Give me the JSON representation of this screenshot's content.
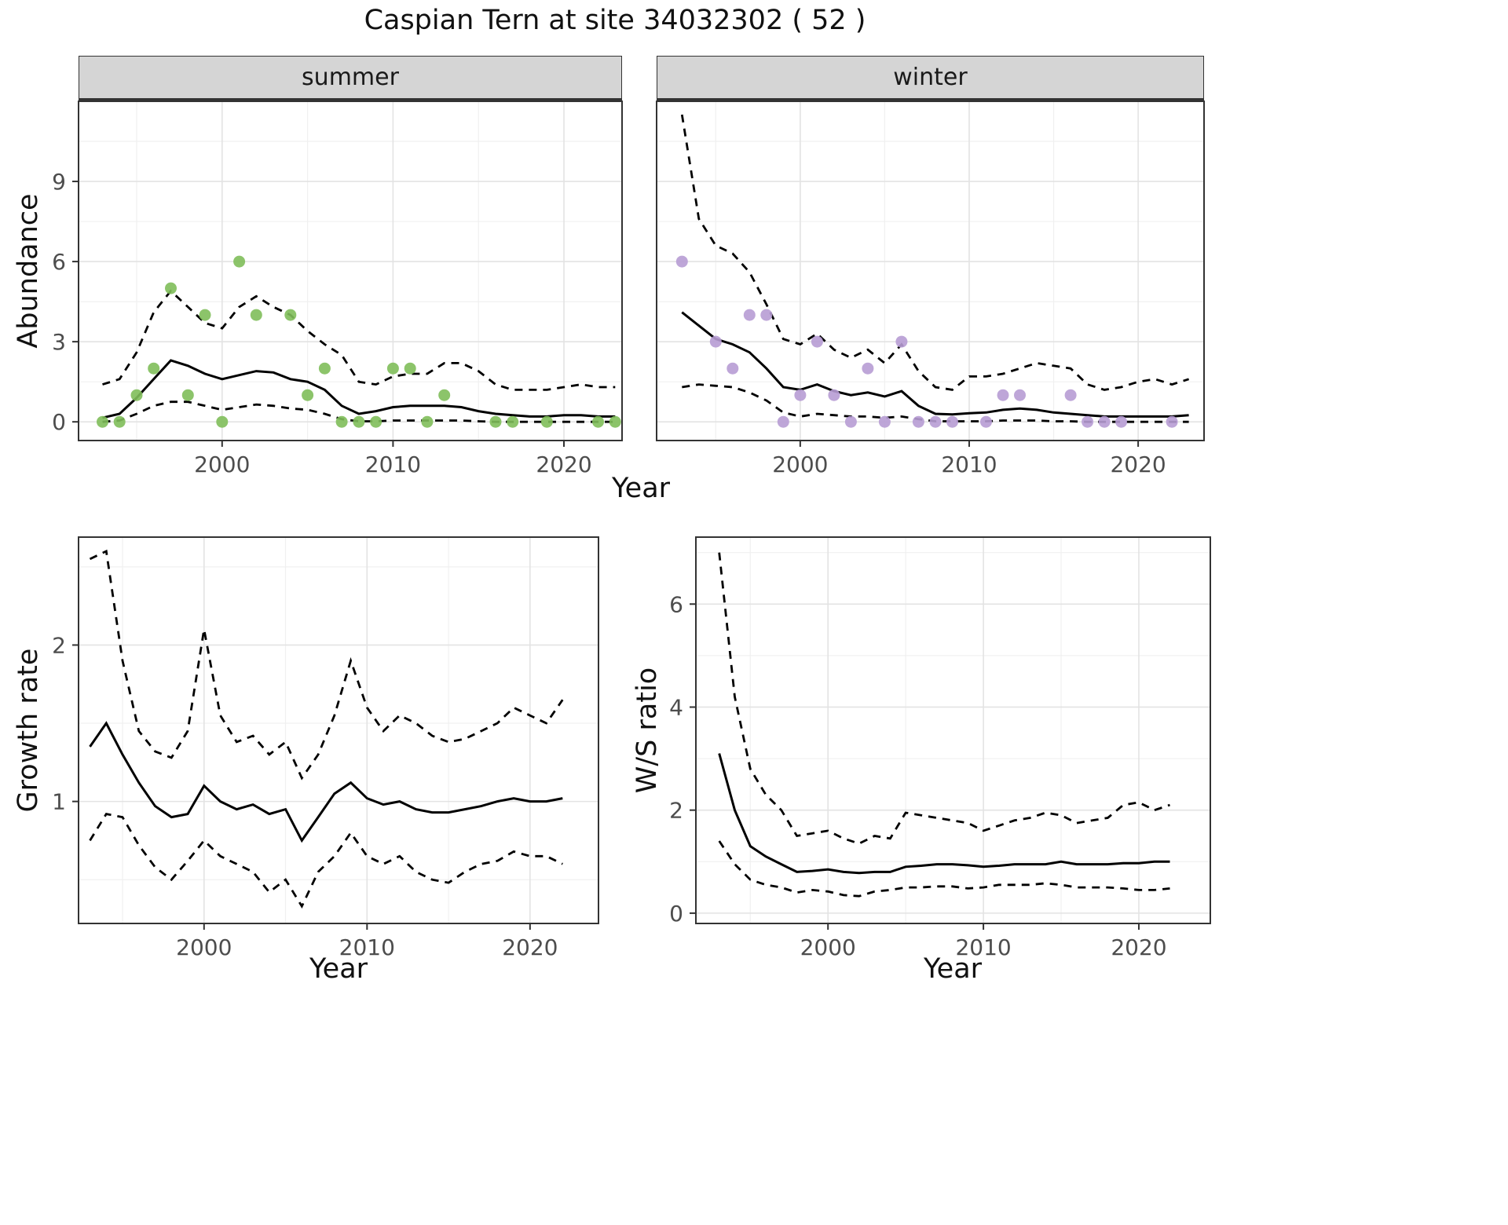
{
  "title": "Caspian Tern at site 34032302 ( 52 )",
  "facets": {
    "summer": "summer",
    "winter": "winter"
  },
  "axis_titles": {
    "abundance": "Abundance",
    "year": "Year",
    "growth": "Growth rate",
    "ws": "W/S ratio"
  },
  "colors": {
    "summer_points": "#7FBE5A",
    "winter_points": "#B79CD4",
    "line": "#000000",
    "strip_bg": "#D5D5D5",
    "grid_major": "#E3E3E3",
    "grid_minor": "#F0F0F0",
    "axis_text": "#4D4D4D",
    "panel_border": "#333333"
  },
  "chart_data": [
    {
      "id": "summer",
      "type": "scatter",
      "title": "summer",
      "xlabel": "Year",
      "ylabel": "Abundance",
      "xlim": [
        1991.6,
        2023.4
      ],
      "ylim": [
        -0.7,
        12.0
      ],
      "xticks": [
        2000,
        2010,
        2020
      ],
      "yticks": [
        0,
        3,
        6,
        9
      ],
      "xminor": [
        1995,
        2005,
        2015
      ],
      "yminor": [
        1.5,
        4.5,
        7.5,
        10.5
      ],
      "point_color": "#7FBE5A",
      "points": {
        "x": [
          1993,
          1994,
          1995,
          1996,
          1997,
          1998,
          1999,
          2000,
          2001,
          2002,
          2004,
          2005,
          2006,
          2007,
          2008,
          2009,
          2010,
          2011,
          2012,
          2013,
          2016,
          2017,
          2019,
          2022,
          2023
        ],
        "y": [
          0,
          0,
          1,
          2,
          5,
          1,
          4,
          0,
          6,
          4,
          4,
          1,
          2,
          0,
          0,
          0,
          2,
          2,
          0,
          1,
          0,
          0,
          0,
          0,
          0
        ]
      },
      "series": [
        {
          "name": "fit",
          "style": "solid",
          "x": [
            1993,
            1994,
            1995,
            1996,
            1997,
            1998,
            1999,
            2000,
            2001,
            2002,
            2003,
            2004,
            2005,
            2006,
            2007,
            2008,
            2009,
            2010,
            2011,
            2012,
            2013,
            2014,
            2015,
            2016,
            2017,
            2018,
            2019,
            2020,
            2021,
            2022,
            2023
          ],
          "y": [
            0.15,
            0.3,
            0.9,
            1.6,
            2.3,
            2.1,
            1.8,
            1.6,
            1.75,
            1.9,
            1.85,
            1.6,
            1.5,
            1.2,
            0.6,
            0.3,
            0.4,
            0.55,
            0.6,
            0.6,
            0.6,
            0.55,
            0.4,
            0.3,
            0.25,
            0.2,
            0.2,
            0.25,
            0.25,
            0.2,
            0.2
          ]
        },
        {
          "name": "upper_ci",
          "style": "dashed",
          "x": [
            1993,
            1994,
            1995,
            1996,
            1997,
            1998,
            1999,
            2000,
            2001,
            2002,
            2003,
            2004,
            2005,
            2006,
            2007,
            2008,
            2009,
            2010,
            2011,
            2012,
            2013,
            2014,
            2015,
            2016,
            2017,
            2018,
            2019,
            2020,
            2021,
            2022,
            2023
          ],
          "y": [
            1.4,
            1.6,
            2.6,
            4.1,
            4.9,
            4.3,
            3.7,
            3.5,
            4.3,
            4.7,
            4.3,
            4.0,
            3.4,
            2.9,
            2.5,
            1.5,
            1.4,
            1.7,
            1.8,
            1.8,
            2.2,
            2.2,
            1.9,
            1.4,
            1.2,
            1.2,
            1.2,
            1.3,
            1.4,
            1.3,
            1.3
          ]
        },
        {
          "name": "lower_ci",
          "style": "dashed",
          "x": [
            1993,
            1994,
            1995,
            1996,
            1997,
            1998,
            1999,
            2000,
            2001,
            2002,
            2003,
            2004,
            2005,
            2006,
            2007,
            2008,
            2009,
            2010,
            2011,
            2012,
            2013,
            2014,
            2015,
            2016,
            2017,
            2018,
            2019,
            2020,
            2021,
            2022,
            2023
          ],
          "y": [
            0.0,
            0.05,
            0.3,
            0.6,
            0.75,
            0.75,
            0.6,
            0.45,
            0.55,
            0.65,
            0.6,
            0.5,
            0.45,
            0.3,
            0.1,
            0.02,
            0.02,
            0.05,
            0.05,
            0.05,
            0.05,
            0.05,
            0.02,
            0.0,
            0.0,
            0.0,
            0.0,
            0.0,
            0.0,
            0.0,
            0.0
          ]
        }
      ]
    },
    {
      "id": "winter",
      "type": "scatter",
      "title": "winter",
      "xlabel": "Year",
      "ylabel": "Abundance",
      "xlim": [
        1991.5,
        2023.9
      ],
      "ylim": [
        -0.7,
        12.0
      ],
      "xticks": [
        2000,
        2010,
        2020
      ],
      "yticks": [
        0,
        3,
        6,
        9
      ],
      "xminor": [
        1995,
        2005,
        2015
      ],
      "yminor": [
        1.5,
        4.5,
        7.5,
        10.5
      ],
      "point_color": "#B79CD4",
      "points": {
        "x": [
          1993,
          1995,
          1996,
          1997,
          1998,
          1999,
          2000,
          2001,
          2002,
          2003,
          2004,
          2005,
          2006,
          2007,
          2008,
          2009,
          2011,
          2012,
          2013,
          2016,
          2017,
          2018,
          2019,
          2022
        ],
        "y": [
          6,
          3,
          2,
          4,
          4,
          0,
          1,
          3,
          1,
          0,
          2,
          0,
          3,
          0,
          0,
          0,
          0,
          1,
          1,
          1,
          0,
          0,
          0,
          0
        ]
      },
      "series": [
        {
          "name": "fit",
          "style": "solid",
          "x": [
            1993,
            1994,
            1995,
            1996,
            1997,
            1998,
            1999,
            2000,
            2001,
            2002,
            2003,
            2004,
            2005,
            2006,
            2007,
            2008,
            2009,
            2010,
            2011,
            2012,
            2013,
            2014,
            2015,
            2016,
            2017,
            2018,
            2019,
            2020,
            2021,
            2022,
            2023
          ],
          "y": [
            4.1,
            3.6,
            3.1,
            2.9,
            2.6,
            2.0,
            1.3,
            1.2,
            1.4,
            1.15,
            1.0,
            1.1,
            0.95,
            1.15,
            0.6,
            0.3,
            0.28,
            0.32,
            0.35,
            0.45,
            0.5,
            0.45,
            0.35,
            0.3,
            0.25,
            0.2,
            0.2,
            0.2,
            0.2,
            0.2,
            0.25
          ]
        },
        {
          "name": "upper_ci",
          "style": "dashed",
          "x": [
            1993,
            1994,
            1995,
            1996,
            1997,
            1998,
            1999,
            2000,
            2001,
            2002,
            2003,
            2004,
            2005,
            2006,
            2007,
            2008,
            2009,
            2010,
            2011,
            2012,
            2013,
            2014,
            2015,
            2016,
            2017,
            2018,
            2019,
            2020,
            2021,
            2022,
            2023
          ],
          "y": [
            11.5,
            7.6,
            6.6,
            6.3,
            5.6,
            4.4,
            3.1,
            2.9,
            3.3,
            2.7,
            2.4,
            2.7,
            2.2,
            2.9,
            1.9,
            1.3,
            1.2,
            1.7,
            1.7,
            1.8,
            2.0,
            2.2,
            2.1,
            2.0,
            1.4,
            1.2,
            1.3,
            1.5,
            1.6,
            1.4,
            1.6
          ]
        },
        {
          "name": "lower_ci",
          "style": "dashed",
          "x": [
            1993,
            1994,
            1995,
            1996,
            1997,
            1998,
            1999,
            2000,
            2001,
            2002,
            2003,
            2004,
            2005,
            2006,
            2007,
            2008,
            2009,
            2010,
            2011,
            2012,
            2013,
            2014,
            2015,
            2016,
            2017,
            2018,
            2019,
            2020,
            2021,
            2022,
            2023
          ],
          "y": [
            1.3,
            1.4,
            1.35,
            1.3,
            1.1,
            0.8,
            0.35,
            0.2,
            0.3,
            0.25,
            0.2,
            0.2,
            0.15,
            0.2,
            0.1,
            0.02,
            0.02,
            0.02,
            0.02,
            0.05,
            0.05,
            0.05,
            0.02,
            0.02,
            0.0,
            0.0,
            0.0,
            0.0,
            0.0,
            0.0,
            0.0
          ]
        }
      ]
    },
    {
      "id": "growth",
      "type": "line",
      "title": "Growth rate",
      "xlabel": "Year",
      "ylabel": "Growth rate",
      "xlim": [
        1992.3,
        2024.2
      ],
      "ylim": [
        0.22,
        2.69
      ],
      "xticks": [
        2000,
        2010,
        2020
      ],
      "yticks": [
        1,
        2
      ],
      "xminor": [
        1995,
        2005,
        2015
      ],
      "yminor": [
        0.5,
        1.5,
        2.5
      ],
      "series": [
        {
          "name": "fit",
          "style": "solid",
          "x": [
            1993,
            1994,
            1995,
            1996,
            1997,
            1998,
            1999,
            2000,
            2001,
            2002,
            2003,
            2004,
            2005,
            2006,
            2007,
            2008,
            2009,
            2010,
            2011,
            2012,
            2013,
            2014,
            2015,
            2016,
            2017,
            2018,
            2019,
            2020,
            2021,
            2022
          ],
          "y": [
            1.35,
            1.5,
            1.3,
            1.12,
            0.97,
            0.9,
            0.92,
            1.1,
            1.0,
            0.95,
            0.98,
            0.92,
            0.95,
            0.75,
            0.9,
            1.05,
            1.12,
            1.02,
            0.98,
            1.0,
            0.95,
            0.93,
            0.93,
            0.95,
            0.97,
            1.0,
            1.02,
            1.0,
            1.0,
            1.02
          ]
        },
        {
          "name": "upper_ci",
          "style": "dashed",
          "x": [
            1993,
            1994,
            1995,
            1996,
            1997,
            1998,
            1999,
            2000,
            2001,
            2002,
            2003,
            2004,
            2005,
            2006,
            2007,
            2008,
            2009,
            2010,
            2011,
            2012,
            2013,
            2014,
            2015,
            2016,
            2017,
            2018,
            2019,
            2020,
            2021,
            2022
          ],
          "y": [
            2.55,
            2.6,
            1.9,
            1.45,
            1.32,
            1.28,
            1.45,
            2.1,
            1.55,
            1.38,
            1.42,
            1.3,
            1.38,
            1.15,
            1.3,
            1.55,
            1.9,
            1.6,
            1.45,
            1.55,
            1.5,
            1.42,
            1.38,
            1.4,
            1.45,
            1.5,
            1.6,
            1.55,
            1.5,
            1.65
          ]
        },
        {
          "name": "lower_ci",
          "style": "dashed",
          "x": [
            1993,
            1994,
            1995,
            1996,
            1997,
            1998,
            1999,
            2000,
            2001,
            2002,
            2003,
            2004,
            2005,
            2006,
            2007,
            2008,
            2009,
            2010,
            2011,
            2012,
            2013,
            2014,
            2015,
            2016,
            2017,
            2018,
            2019,
            2020,
            2021,
            2022
          ],
          "y": [
            0.75,
            0.92,
            0.9,
            0.72,
            0.58,
            0.5,
            0.62,
            0.75,
            0.65,
            0.6,
            0.55,
            0.42,
            0.5,
            0.33,
            0.55,
            0.65,
            0.8,
            0.65,
            0.6,
            0.65,
            0.55,
            0.5,
            0.48,
            0.55,
            0.6,
            0.62,
            0.68,
            0.65,
            0.65,
            0.6
          ]
        }
      ]
    },
    {
      "id": "ws",
      "type": "line",
      "title": "W/S ratio",
      "xlabel": "Year",
      "ylabel": "W/S ratio",
      "xlim": [
        1991.5,
        2024.6
      ],
      "ylim": [
        -0.2,
        7.3
      ],
      "xticks": [
        2000,
        2010,
        2020
      ],
      "yticks": [
        0,
        2,
        4,
        6
      ],
      "xminor": [
        1995,
        2005,
        2015
      ],
      "yminor": [
        1,
        3,
        5,
        7
      ],
      "series": [
        {
          "name": "fit",
          "style": "solid",
          "x": [
            1993,
            1994,
            1995,
            1996,
            1997,
            1998,
            1999,
            2000,
            2001,
            2002,
            2003,
            2004,
            2005,
            2006,
            2007,
            2008,
            2009,
            2010,
            2011,
            2012,
            2013,
            2014,
            2015,
            2016,
            2017,
            2018,
            2019,
            2020,
            2021,
            2022
          ],
          "y": [
            3.1,
            2.0,
            1.3,
            1.1,
            0.95,
            0.8,
            0.82,
            0.85,
            0.8,
            0.78,
            0.8,
            0.8,
            0.9,
            0.92,
            0.95,
            0.95,
            0.93,
            0.9,
            0.92,
            0.95,
            0.95,
            0.95,
            1.0,
            0.95,
            0.95,
            0.95,
            0.97,
            0.97,
            1.0,
            1.0
          ]
        },
        {
          "name": "upper_ci",
          "style": "dashed",
          "x": [
            1993,
            1994,
            1995,
            1996,
            1997,
            1998,
            1999,
            2000,
            2001,
            2002,
            2003,
            2004,
            2005,
            2006,
            2007,
            2008,
            2009,
            2010,
            2011,
            2012,
            2013,
            2014,
            2015,
            2016,
            2017,
            2018,
            2019,
            2020,
            2021,
            2022
          ],
          "y": [
            7.0,
            4.2,
            2.8,
            2.3,
            2.0,
            1.5,
            1.55,
            1.6,
            1.45,
            1.35,
            1.5,
            1.45,
            1.95,
            1.9,
            1.85,
            1.8,
            1.75,
            1.6,
            1.7,
            1.8,
            1.85,
            1.95,
            1.9,
            1.75,
            1.8,
            1.85,
            2.1,
            2.15,
            2.0,
            2.1
          ]
        },
        {
          "name": "lower_ci",
          "style": "dashed",
          "x": [
            1993,
            1994,
            1995,
            1996,
            1997,
            1998,
            1999,
            2000,
            2001,
            2002,
            2003,
            2004,
            2005,
            2006,
            2007,
            2008,
            2009,
            2010,
            2011,
            2012,
            2013,
            2014,
            2015,
            2016,
            2017,
            2018,
            2019,
            2020,
            2021,
            2022
          ],
          "y": [
            1.4,
            0.95,
            0.65,
            0.55,
            0.5,
            0.4,
            0.45,
            0.42,
            0.35,
            0.33,
            0.42,
            0.45,
            0.5,
            0.5,
            0.52,
            0.52,
            0.48,
            0.5,
            0.55,
            0.55,
            0.55,
            0.58,
            0.55,
            0.5,
            0.5,
            0.5,
            0.48,
            0.45,
            0.45,
            0.48
          ]
        }
      ]
    }
  ]
}
